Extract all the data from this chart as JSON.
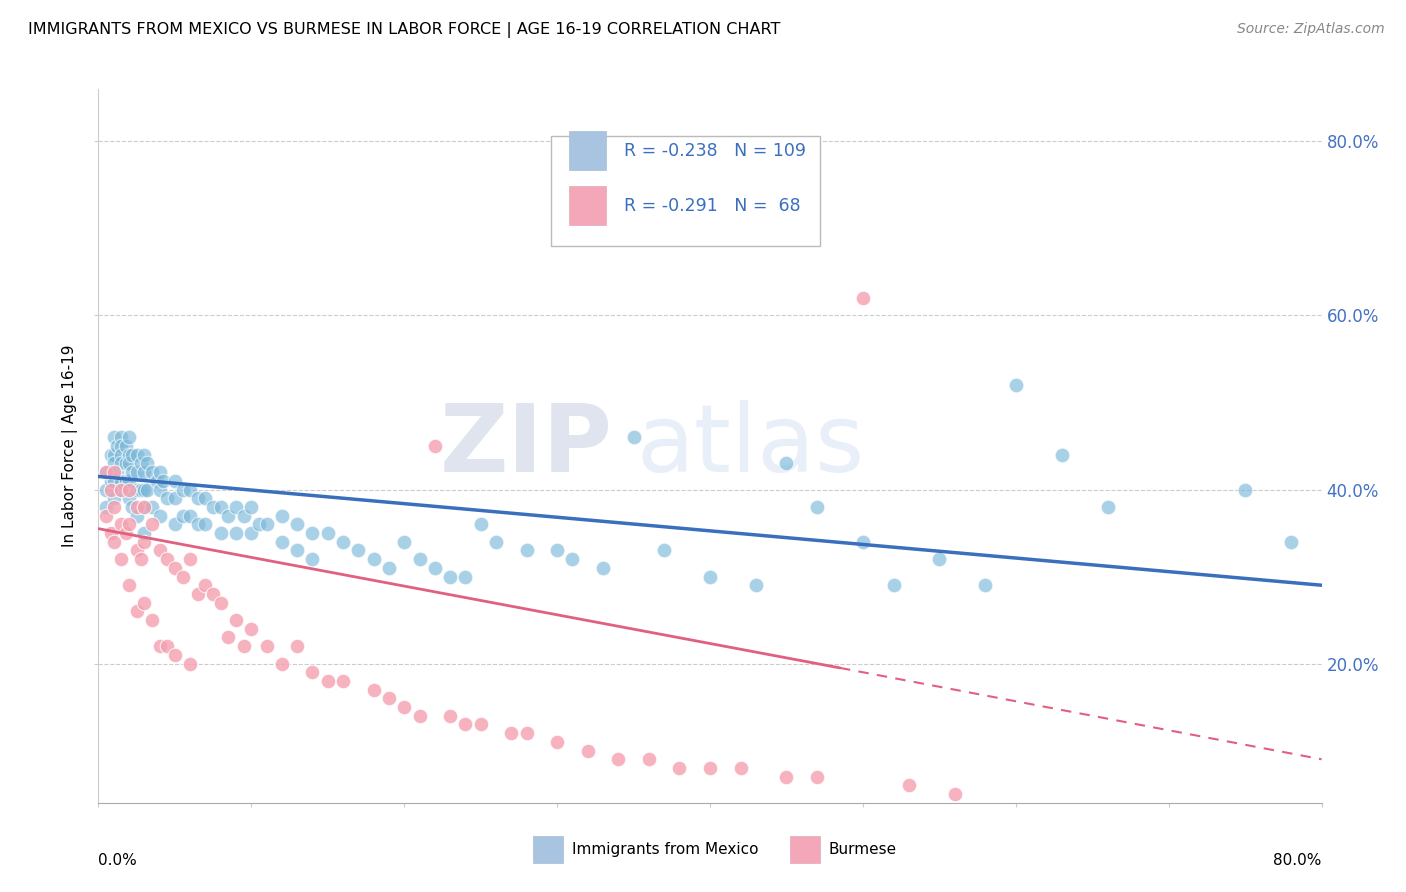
{
  "title": "IMMIGRANTS FROM MEXICO VS BURMESE IN LABOR FORCE | AGE 16-19 CORRELATION CHART",
  "source": "Source: ZipAtlas.com",
  "ylabel": "In Labor Force | Age 16-19",
  "watermark": "ZIPatlas",
  "legend": {
    "mexico": {
      "R": "-0.238",
      "N": "109",
      "color": "#a8c4e0"
    },
    "burmese": {
      "R": "-0.291",
      "N": "68",
      "color": "#f4a7b9"
    }
  },
  "ytick_labels": [
    "20.0%",
    "40.0%",
    "60.0%",
    "80.0%"
  ],
  "ytick_values": [
    0.2,
    0.4,
    0.6,
    0.8
  ],
  "xlim": [
    0.0,
    0.8
  ],
  "ylim": [
    0.04,
    0.86
  ],
  "mexico_color": "#7ab8d9",
  "burmese_color": "#f4a0b0",
  "trend_mexico_color": "#3a6fbd",
  "trend_burmese_color": "#e06080",
  "background_color": "#ffffff",
  "grid_color": "#cccccc",
  "mexico_scatter": {
    "x": [
      0.005,
      0.005,
      0.005,
      0.008,
      0.008,
      0.01,
      0.01,
      0.01,
      0.01,
      0.01,
      0.012,
      0.012,
      0.015,
      0.015,
      0.015,
      0.015,
      0.015,
      0.015,
      0.018,
      0.018,
      0.018,
      0.02,
      0.02,
      0.02,
      0.02,
      0.02,
      0.022,
      0.022,
      0.022,
      0.025,
      0.025,
      0.025,
      0.025,
      0.028,
      0.028,
      0.03,
      0.03,
      0.03,
      0.03,
      0.03,
      0.032,
      0.032,
      0.035,
      0.035,
      0.038,
      0.04,
      0.04,
      0.04,
      0.042,
      0.045,
      0.05,
      0.05,
      0.05,
      0.055,
      0.055,
      0.06,
      0.06,
      0.065,
      0.065,
      0.07,
      0.07,
      0.075,
      0.08,
      0.08,
      0.085,
      0.09,
      0.09,
      0.095,
      0.1,
      0.1,
      0.105,
      0.11,
      0.12,
      0.12,
      0.13,
      0.13,
      0.14,
      0.14,
      0.15,
      0.16,
      0.17,
      0.18,
      0.19,
      0.2,
      0.21,
      0.22,
      0.23,
      0.24,
      0.25,
      0.26,
      0.28,
      0.3,
      0.31,
      0.33,
      0.35,
      0.37,
      0.4,
      0.43,
      0.45,
      0.47,
      0.5,
      0.52,
      0.55,
      0.58,
      0.6,
      0.63,
      0.66,
      0.75,
      0.78
    ],
    "y": [
      0.42,
      0.4,
      0.38,
      0.44,
      0.41,
      0.46,
      0.44,
      0.43,
      0.41,
      0.39,
      0.45,
      0.42,
      0.46,
      0.45,
      0.44,
      0.43,
      0.41,
      0.4,
      0.45,
      0.43,
      0.41,
      0.46,
      0.44,
      0.43,
      0.41,
      0.39,
      0.44,
      0.42,
      0.38,
      0.44,
      0.42,
      0.4,
      0.37,
      0.43,
      0.4,
      0.44,
      0.42,
      0.4,
      0.38,
      0.35,
      0.43,
      0.4,
      0.42,
      0.38,
      0.41,
      0.42,
      0.4,
      0.37,
      0.41,
      0.39,
      0.41,
      0.39,
      0.36,
      0.4,
      0.37,
      0.4,
      0.37,
      0.39,
      0.36,
      0.39,
      0.36,
      0.38,
      0.38,
      0.35,
      0.37,
      0.38,
      0.35,
      0.37,
      0.38,
      0.35,
      0.36,
      0.36,
      0.37,
      0.34,
      0.36,
      0.33,
      0.35,
      0.32,
      0.35,
      0.34,
      0.33,
      0.32,
      0.31,
      0.34,
      0.32,
      0.31,
      0.3,
      0.3,
      0.36,
      0.34,
      0.33,
      0.33,
      0.32,
      0.31,
      0.46,
      0.33,
      0.3,
      0.29,
      0.43,
      0.38,
      0.34,
      0.29,
      0.32,
      0.29,
      0.52,
      0.44,
      0.38,
      0.4,
      0.34
    ]
  },
  "burmese_scatter": {
    "x": [
      0.005,
      0.005,
      0.008,
      0.008,
      0.01,
      0.01,
      0.01,
      0.015,
      0.015,
      0.015,
      0.018,
      0.02,
      0.02,
      0.02,
      0.025,
      0.025,
      0.025,
      0.028,
      0.03,
      0.03,
      0.03,
      0.035,
      0.035,
      0.04,
      0.04,
      0.045,
      0.045,
      0.05,
      0.05,
      0.055,
      0.06,
      0.06,
      0.065,
      0.07,
      0.075,
      0.08,
      0.085,
      0.09,
      0.095,
      0.1,
      0.11,
      0.12,
      0.13,
      0.14,
      0.15,
      0.16,
      0.18,
      0.19,
      0.2,
      0.21,
      0.22,
      0.23,
      0.24,
      0.25,
      0.27,
      0.28,
      0.3,
      0.32,
      0.34,
      0.36,
      0.38,
      0.4,
      0.42,
      0.45,
      0.47,
      0.5,
      0.53,
      0.56
    ],
    "y": [
      0.42,
      0.37,
      0.4,
      0.35,
      0.42,
      0.38,
      0.34,
      0.4,
      0.36,
      0.32,
      0.35,
      0.4,
      0.36,
      0.29,
      0.38,
      0.33,
      0.26,
      0.32,
      0.38,
      0.34,
      0.27,
      0.36,
      0.25,
      0.33,
      0.22,
      0.32,
      0.22,
      0.31,
      0.21,
      0.3,
      0.32,
      0.2,
      0.28,
      0.29,
      0.28,
      0.27,
      0.23,
      0.25,
      0.22,
      0.24,
      0.22,
      0.2,
      0.22,
      0.19,
      0.18,
      0.18,
      0.17,
      0.16,
      0.15,
      0.14,
      0.45,
      0.14,
      0.13,
      0.13,
      0.12,
      0.12,
      0.11,
      0.1,
      0.09,
      0.09,
      0.08,
      0.08,
      0.08,
      0.07,
      0.07,
      0.62,
      0.06,
      0.05
    ]
  },
  "trend_mexico": {
    "x_start": 0.0,
    "x_end": 0.8,
    "y_start": 0.415,
    "y_end": 0.29
  },
  "trend_burmese_solid": {
    "x_start": 0.0,
    "x_end": 0.485,
    "y_start": 0.355,
    "y_end": 0.195
  },
  "trend_burmese_dashed": {
    "x_start": 0.485,
    "x_end": 0.8,
    "y_start": 0.195,
    "y_end": 0.09
  }
}
